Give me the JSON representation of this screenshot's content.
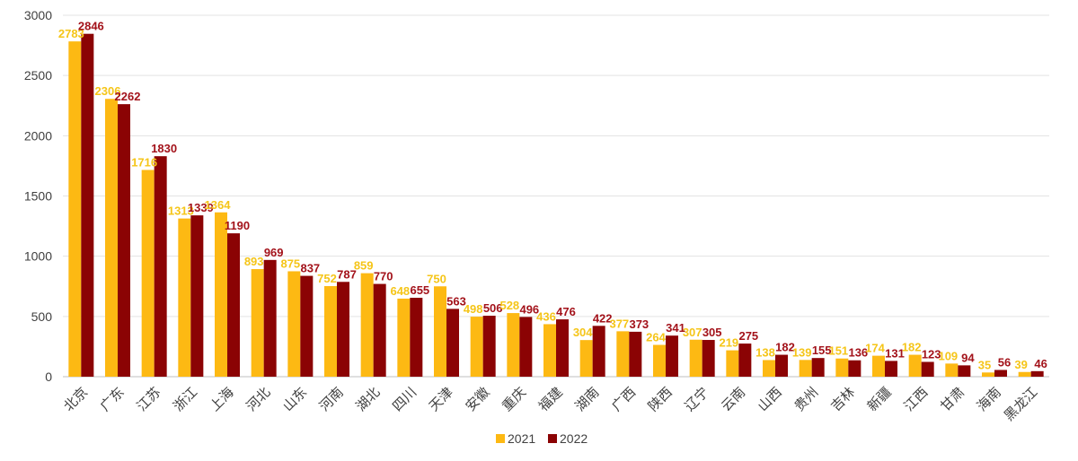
{
  "chart_data": {
    "type": "bar",
    "categories": [
      "北京",
      "广东",
      "江苏",
      "浙江",
      "上海",
      "河北",
      "山东",
      "河南",
      "湖北",
      "四川",
      "天津",
      "安徽",
      "重庆",
      "福建",
      "湖南",
      "广西",
      "陕西",
      "辽宁",
      "云南",
      "山西",
      "贵州",
      "吉林",
      "新疆",
      "江西",
      "甘肃",
      "海南",
      "黑龙江"
    ],
    "series": [
      {
        "name": "2021",
        "color": "#FDB913",
        "label_color": "#F5C518",
        "values": [
          2783,
          2306,
          1716,
          1313,
          1364,
          893,
          875,
          752,
          859,
          648,
          750,
          498,
          528,
          436,
          304,
          377,
          264,
          307,
          219,
          138,
          139,
          151,
          174,
          182,
          109,
          35,
          39
        ],
        "labels": [
          "2783",
          "2306",
          "1716",
          "1313",
          "1364",
          "893",
          "875",
          "752",
          "859",
          "648",
          "750",
          "498",
          "528",
          "436",
          "304",
          "377",
          "264",
          "307",
          "219",
          "138",
          "139",
          "151",
          "174",
          "182",
          "109",
          "35",
          "39"
        ]
      },
      {
        "name": "2022",
        "color": "#8B0304",
        "label_color": "#A3121A",
        "values": [
          2846,
          2262,
          1830,
          1339,
          1190,
          969,
          837,
          787,
          770,
          655,
          563,
          506,
          496,
          476,
          422,
          373,
          341,
          305,
          275,
          182,
          155,
          136,
          131,
          123,
          94,
          56,
          46
        ],
        "labels": [
          "2846",
          "2262",
          "1830",
          "1339",
          "1190",
          "969",
          "837",
          "787",
          "770",
          "655",
          "563",
          "506",
          "496",
          "476",
          "422",
          "373",
          "341",
          "305",
          "275",
          "182",
          "155",
          "136",
          "131",
          "123",
          "94",
          "56",
          "46"
        ]
      }
    ],
    "ylim": [
      0,
      3000
    ],
    "yticks": [
      "0",
      "500",
      "1000",
      "1500",
      "2000",
      "2500",
      "3000"
    ],
    "grid": true,
    "legend": "bottom-center"
  }
}
